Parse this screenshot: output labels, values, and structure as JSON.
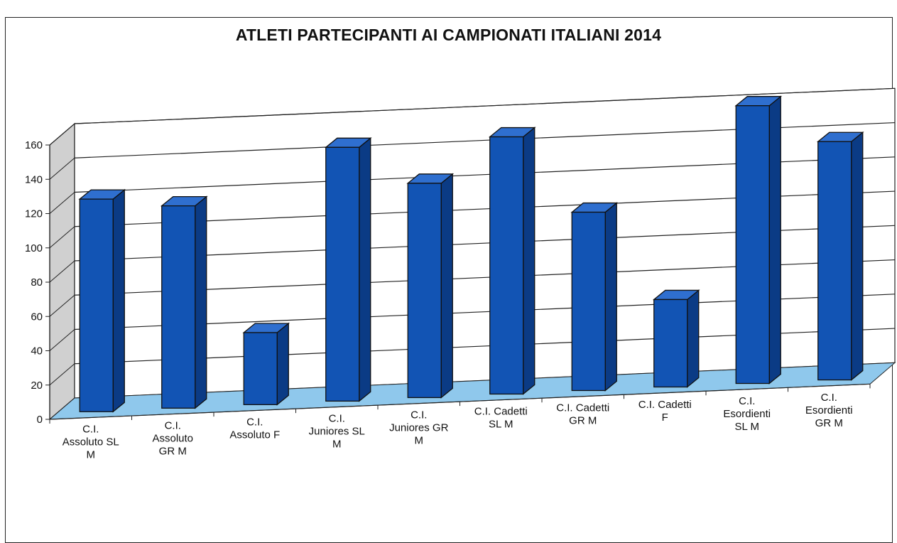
{
  "chart_data": {
    "type": "bar",
    "title": "ATLETI PARTECIPANTI AI CAMPIONATI ITALIANI 2014",
    "categories": [
      [
        "C.I.",
        "Assoluto SL",
        "M"
      ],
      [
        "C.I.",
        "Assoluto",
        "GR M"
      ],
      [
        "C.I.",
        "Assoluto F"
      ],
      [
        "C.I.",
        "Juniores SL",
        "M"
      ],
      [
        "C.I.",
        "Juniores GR",
        "M"
      ],
      [
        "C.I. Cadetti",
        "SL M"
      ],
      [
        "C.I. Cadetti",
        "GR M"
      ],
      [
        "C.I. Cadetti",
        "F"
      ],
      [
        "C.I.",
        "Esordienti",
        "SL M"
      ],
      [
        "C.I.",
        "Esordienti",
        "GR M"
      ]
    ],
    "values": [
      124,
      118,
      42,
      148,
      125,
      150,
      104,
      51,
      162,
      139
    ],
    "yticks": [
      0,
      20,
      40,
      60,
      80,
      100,
      120,
      140,
      160
    ],
    "ylim": [
      0,
      160
    ],
    "xlabel": "",
    "ylabel": "",
    "grid": true,
    "legend": "none",
    "colors": {
      "bar_front": "#1254b4",
      "bar_side": "#0b3b85",
      "bar_top": "#2f6fcf",
      "floor": "#8fc8ec",
      "back_wall": "#ffffff",
      "side_wall": "#d0d0d0"
    }
  }
}
